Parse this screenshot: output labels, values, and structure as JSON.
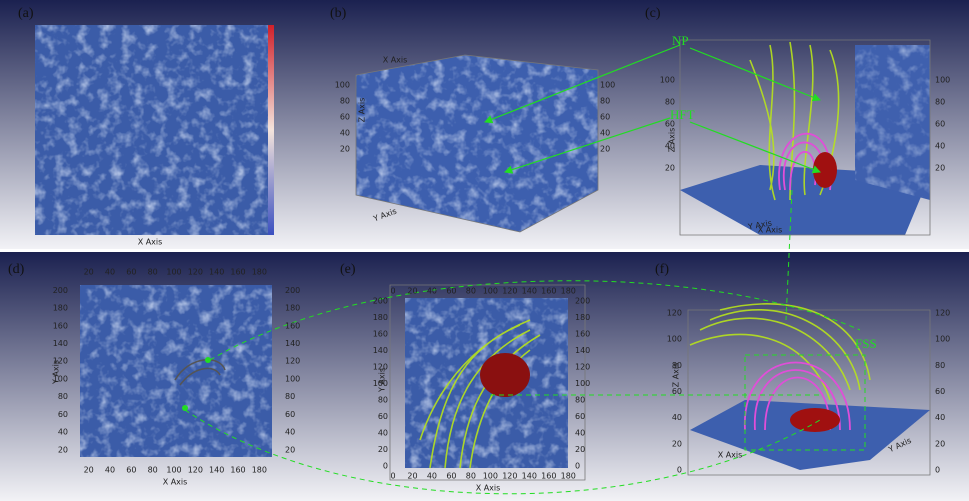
{
  "panels": [
    {
      "label": "(a)",
      "x_title": "X Axis"
    },
    {
      "label": "(b)",
      "x_title": "X Axis",
      "y_title": "Y Axis",
      "z_title": "Z Axis",
      "zticks": [
        20,
        40,
        60,
        80,
        100
      ]
    },
    {
      "label": "(c)",
      "x_title": "X Axis",
      "y_title": "Y Axis",
      "z_title": "Z Axis",
      "zticks": [
        20,
        40,
        60,
        80,
        100
      ]
    },
    {
      "label": "(d)",
      "x_title": "X Axis",
      "y_title": "Y Axis",
      "xticks": [
        20,
        40,
        60,
        80,
        100,
        120,
        140,
        160,
        180
      ],
      "yticks": [
        20,
        40,
        60,
        80,
        100,
        120,
        140,
        160,
        180,
        200
      ]
    },
    {
      "label": "(e)",
      "x_title": "X Axis",
      "y_title": "Y Axis",
      "xticks": [
        0,
        20,
        40,
        60,
        80,
        100,
        120,
        140,
        160,
        180
      ],
      "yticks": [
        0,
        20,
        40,
        60,
        80,
        100,
        120,
        140,
        160,
        180,
        200
      ]
    },
    {
      "label": "(f)",
      "x_title": "X Axis",
      "y_title": "Y Axis",
      "z_title": "Z Axis",
      "zticks": [
        0,
        20,
        40,
        60,
        80,
        100,
        120
      ]
    }
  ],
  "annotations": {
    "np": "NP",
    "hft": "HFT",
    "fss": "FSS"
  }
}
